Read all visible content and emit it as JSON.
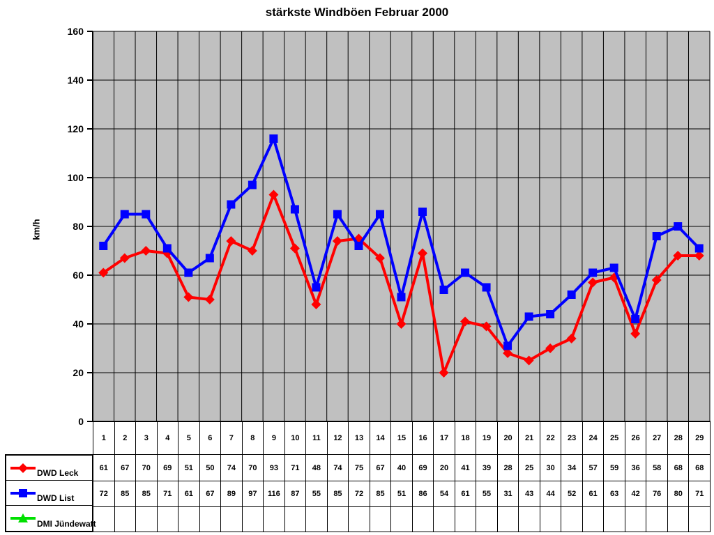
{
  "title": "stärkste Windböen Februar 2000",
  "chart_data": {
    "type": "line",
    "title": "stärkste Windböen Februar 2000",
    "xlabel": "",
    "ylabel": "km/h",
    "ylim": [
      0,
      160
    ],
    "yticks": [
      0,
      20,
      40,
      60,
      80,
      100,
      120,
      140,
      160
    ],
    "grid": true,
    "plot_bg": "#c0c0c0",
    "grid_color": "#000000",
    "legend_position": "table-left",
    "categories": [
      1,
      2,
      3,
      4,
      5,
      6,
      7,
      8,
      9,
      10,
      11,
      12,
      13,
      14,
      15,
      16,
      17,
      18,
      19,
      20,
      21,
      22,
      23,
      24,
      25,
      26,
      27,
      28,
      29
    ],
    "series": [
      {
        "name": "DWD Leck",
        "color": "#ff0000",
        "marker": "diamond",
        "values": [
          61,
          67,
          70,
          69,
          51,
          50,
          74,
          70,
          93,
          71,
          48,
          74,
          75,
          67,
          40,
          69,
          20,
          41,
          39,
          28,
          25,
          30,
          34,
          57,
          59,
          36,
          58,
          68,
          68
        ]
      },
      {
        "name": "DWD List",
        "color": "#0000ff",
        "marker": "square",
        "values": [
          72,
          85,
          85,
          71,
          61,
          67,
          89,
          97,
          116,
          87,
          55,
          85,
          72,
          85,
          51,
          86,
          54,
          61,
          55,
          31,
          43,
          44,
          52,
          61,
          63,
          42,
          76,
          80,
          71
        ]
      },
      {
        "name": "DMI Jündewatt",
        "color": "#00e000",
        "marker": "triangle",
        "values": []
      }
    ]
  }
}
